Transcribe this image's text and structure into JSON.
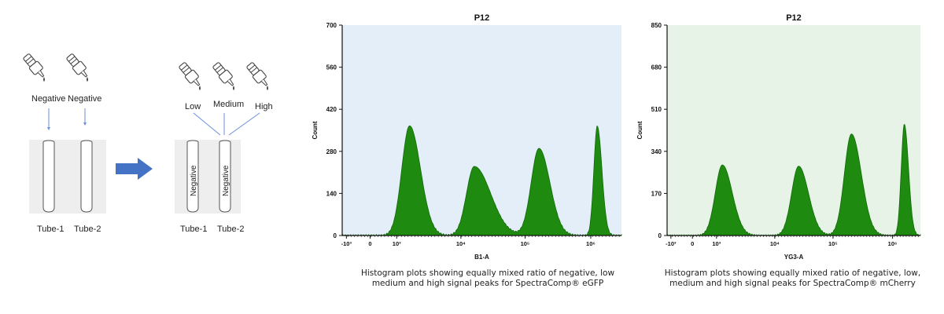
{
  "left_diagram": {
    "step1": {
      "labels": [
        "Negative",
        "Negative"
      ],
      "tubes": [
        "Tube-1",
        "Tube-2"
      ]
    },
    "step2": {
      "labels": [
        "Low",
        "Medium",
        "High"
      ],
      "tube_texts": [
        "Negative",
        "Negative"
      ],
      "tubes": [
        "Tube-1",
        "Tube-2"
      ]
    },
    "colors": {
      "arrow": "#4472c4",
      "panel": "#eeeeee",
      "guide_line": "#6a8fd6"
    }
  },
  "charts": [
    {
      "id": "egfp",
      "caption": [
        "Histogram plots showing equally mixed ratio of negative, low",
        "medium and high signal peaks for SpectraComp® eGFP"
      ]
    },
    {
      "id": "mcherry",
      "caption": [
        "Histogram plots showing equally mixed ratio of negative, low,",
        "medium and high signal peaks for SpectraComp® mCherry"
      ]
    }
  ],
  "chart_data": [
    {
      "type": "area",
      "title": "P12",
      "xlabel": "B1-A",
      "ylabel": "Count",
      "xscale": "biexponential",
      "xticks": [
        "-10³",
        "0",
        "10³",
        "10⁴",
        "10⁵",
        "10⁶"
      ],
      "yticks": [
        0,
        140,
        280,
        420,
        560,
        700
      ],
      "ylim": [
        0,
        700
      ],
      "background": "#e3eef9",
      "fill_color": "#1e8a10",
      "peaks": [
        {
          "label": "negative",
          "x_log10": 3.2,
          "count": 365
        },
        {
          "label": "low",
          "x_log10": 4.2,
          "count": 230
        },
        {
          "label": "medium",
          "x_log10": 5.2,
          "count": 290
        },
        {
          "label": "high",
          "x_log10": 6.1,
          "count": 365
        }
      ]
    },
    {
      "type": "area",
      "title": "P12",
      "xlabel": "YG3-A",
      "ylabel": "Count",
      "xscale": "biexponential",
      "xticks": [
        "-10³",
        "0",
        "10³",
        "10⁴",
        "10⁵",
        "10⁶"
      ],
      "yticks": [
        0,
        170,
        340,
        510,
        680,
        850
      ],
      "ylim": [
        0,
        850
      ],
      "background": "#e6f3e6",
      "fill_color": "#1e8a10",
      "peaks": [
        {
          "label": "negative",
          "x_log10": 3.1,
          "count": 285
        },
        {
          "label": "low",
          "x_log10": 4.4,
          "count": 280
        },
        {
          "label": "medium",
          "x_log10": 5.3,
          "count": 410
        },
        {
          "label": "high",
          "x_log10": 6.2,
          "count": 450
        }
      ]
    }
  ]
}
